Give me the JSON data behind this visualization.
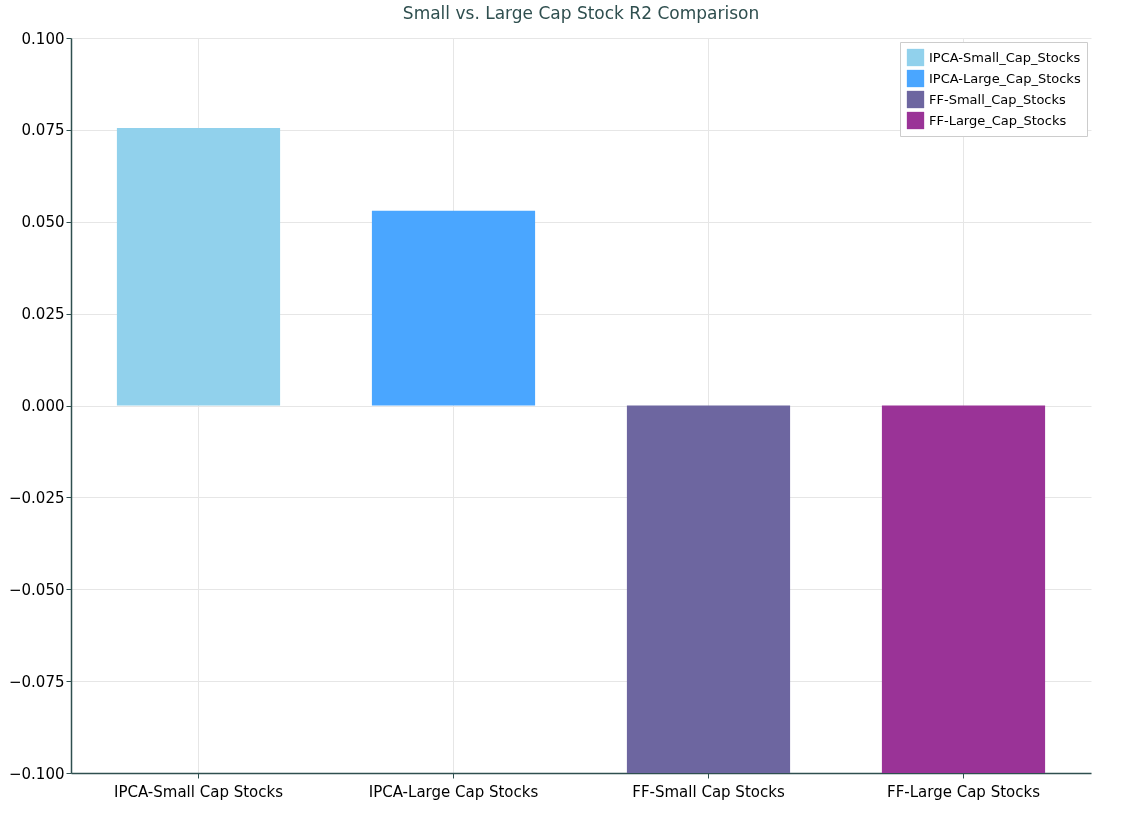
{
  "chart_data": {
    "type": "bar",
    "title": "Small vs. Large Cap Stock R2 Comparison",
    "categories": [
      "IPCA-Small Cap Stocks",
      "IPCA-Large Cap Stocks",
      "FF-Small Cap Stocks",
      "FF-Large Cap Stocks"
    ],
    "series": [
      {
        "name": "IPCA-Small_Cap_Stocks",
        "color": "#91d1ec",
        "values": [
          0.0755,
          null,
          null,
          null
        ]
      },
      {
        "name": "IPCA-Large_Cap_Stocks",
        "color": "#4aa6ff",
        "values": [
          null,
          0.053,
          null,
          null
        ]
      },
      {
        "name": "FF-Small_Cap_Stocks",
        "color": "#6d66a0",
        "values": [
          null,
          null,
          -0.1,
          null
        ]
      },
      {
        "name": "FF-Large_Cap_Stocks",
        "color": "#9a3397",
        "values": [
          null,
          null,
          null,
          -0.1
        ]
      }
    ],
    "ylim": [
      -0.1,
      0.1
    ],
    "yticks": [
      {
        "value": -0.1,
        "label": "−0.100"
      },
      {
        "value": -0.075,
        "label": "−0.075"
      },
      {
        "value": -0.05,
        "label": "−0.050"
      },
      {
        "value": -0.025,
        "label": "−0.025"
      },
      {
        "value": 0,
        "label": "0.000"
      },
      {
        "value": 0.025,
        "label": "0.025"
      },
      {
        "value": 0.05,
        "label": "0.050"
      },
      {
        "value": 0.075,
        "label": "0.075"
      },
      {
        "value": 0.1,
        "label": "0.100"
      }
    ],
    "grid": true,
    "legend": "top right"
  }
}
